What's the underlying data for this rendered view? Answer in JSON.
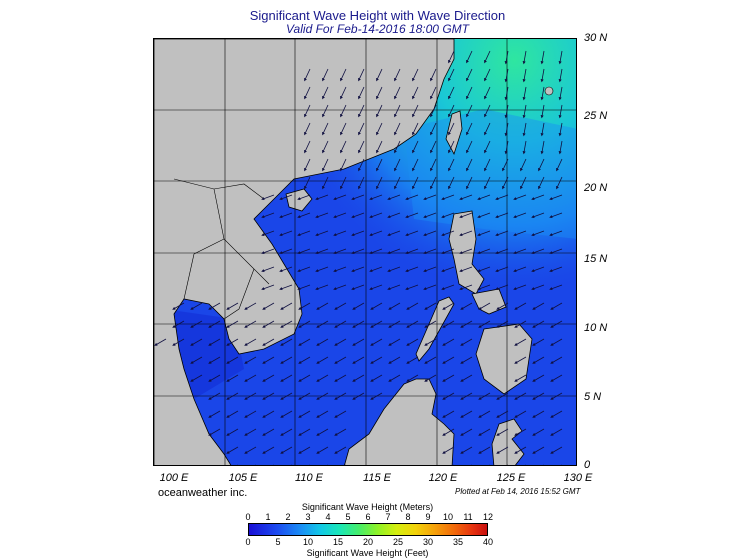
{
  "title": "Significant Wave Height with Wave Direction",
  "subtitle": "Valid For Feb-14-2016 18:00 GMT",
  "x_labels": [
    "100 E",
    "105 E",
    "110 E",
    "115 E",
    "120 E",
    "125 E",
    "130 E"
  ],
  "y_labels": [
    "30 N",
    "25 N",
    "20 N",
    "15 N",
    "10 N",
    "5 N",
    "0"
  ],
  "brand": "oceanweather inc.",
  "plotted": "Plotted at Feb 14, 2016 15:52 GMT",
  "legend": {
    "meters_title": "Significant Wave Height (Meters)",
    "meters_ticks": [
      "0",
      "1",
      "2",
      "3",
      "4",
      "5",
      "6",
      "7",
      "8",
      "9",
      "10",
      "11",
      "12"
    ],
    "feet_ticks": [
      "0",
      "5",
      "10",
      "15",
      "20",
      "25",
      "30",
      "35",
      "40"
    ],
    "feet_title": "Significant Wave Height (Feet)"
  },
  "colors": {
    "land": "#c0c0c0",
    "sea_low": "#1a3ee8",
    "sea_mid": "#1a8ff5",
    "sea_high": "#2fe6a0"
  }
}
